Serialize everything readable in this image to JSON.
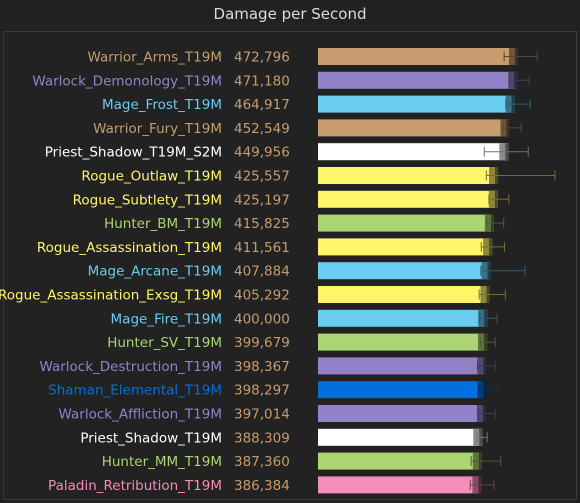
{
  "chart_data": {
    "type": "bar",
    "orientation": "horizontal",
    "title": "Damage per Second",
    "grid": false,
    "legend": "none",
    "categories": [
      "Warrior_Arms_T19M",
      "Warlock_Demonology_T19M",
      "Mage_Frost_T19M",
      "Warrior_Fury_T19M",
      "Priest_Shadow_T19M_S2M",
      "Rogue_Outlaw_T19M",
      "Rogue_Subtlety_T19M",
      "Hunter_BM_T19M",
      "Rogue_Assassination_T19M",
      "Mage_Arcane_T19M",
      "Rogue_Assassination_Exsg_T19M",
      "Mage_Fire_T19M",
      "Hunter_SV_T19M",
      "Warlock_Destruction_T19M",
      "Shaman_Elemental_T19M",
      "Warlock_Affliction_T19M",
      "Priest_Shadow_T19M",
      "Hunter_MM_T19M",
      "Paladin_Retribution_T19M"
    ],
    "value_labels": [
      "472,796",
      "471,180",
      "464,917",
      "452,549",
      "449,956",
      "425,557",
      "425,197",
      "415,825",
      "411,561",
      "407,884",
      "405,292",
      "400,000",
      "399,679",
      "398,367",
      "398,297",
      "397,014",
      "388,309",
      "387,360",
      "386,384"
    ],
    "values": [
      472796,
      471180,
      464917,
      452549,
      449956,
      425557,
      425197,
      415825,
      411561,
      407884,
      405292,
      400000,
      399679,
      398367,
      398297,
      397014,
      388309,
      387360,
      386384
    ],
    "error_low": [
      440000,
      452000,
      444000,
      438000,
      393000,
      398000,
      404000,
      399000,
      386000,
      385000,
      381000,
      382000,
      384000,
      377000,
      379000,
      380000,
      376000,
      362000,
      360000
    ],
    "error_high": [
      518000,
      499000,
      502000,
      480000,
      497000,
      560000,
      451000,
      439000,
      441000,
      489000,
      443000,
      423000,
      419000,
      419000,
      424000,
      419000,
      400000,
      432000,
      416000
    ],
    "colors": [
      "#C79C6E",
      "#9482C9",
      "#69CCF0",
      "#C79C6E",
      "#FFFFFF",
      "#FFF569",
      "#FFF569",
      "#ABD473",
      "#FFF569",
      "#69CCF0",
      "#FFF569",
      "#69CCF0",
      "#ABD473",
      "#9482C9",
      "#0070DE",
      "#9482C9",
      "#FFFFFF",
      "#ABD473",
      "#F58CBA"
    ],
    "value_color": "#C79C6E",
    "xlim": [
      0,
      472796
    ]
  }
}
